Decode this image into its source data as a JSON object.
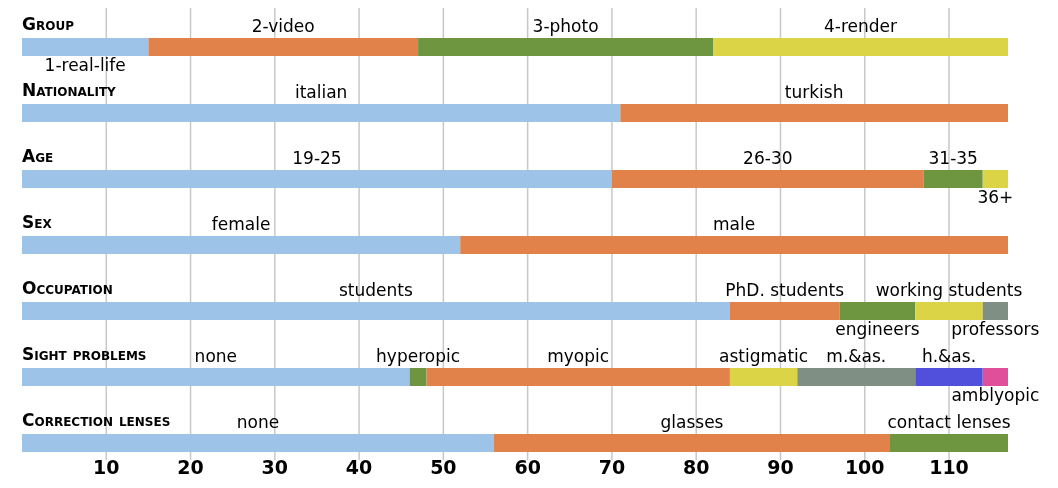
{
  "chart_data": {
    "type": "bar",
    "orientation": "horizontal",
    "stacked": true,
    "categories": [
      "Group",
      "Nationality",
      "Age",
      "Sex",
      "Occupation",
      "Sight problems",
      "Correction lenses"
    ],
    "xlim": [
      0,
      117
    ],
    "xticks": [
      10,
      20,
      30,
      40,
      50,
      60,
      70,
      80,
      90,
      100,
      110
    ],
    "grid": "x",
    "series": [
      {
        "name": "1-real-life",
        "color": "#9dc3e8",
        "values": [
          15,
          null,
          null,
          null,
          null,
          null,
          null
        ]
      },
      {
        "name": "2-video",
        "color": "#e0824a",
        "values": [
          32,
          null,
          null,
          null,
          null,
          null,
          null
        ]
      },
      {
        "name": "3-photo",
        "color": "#6e9640",
        "values": [
          35,
          null,
          null,
          null,
          null,
          null,
          null
        ]
      },
      {
        "name": "4-render",
        "color": "#dcd447",
        "values": [
          35,
          null,
          null,
          null,
          null,
          null,
          null
        ]
      },
      {
        "name": "italian",
        "color": "#9dc3e8",
        "values": [
          null,
          71,
          null,
          null,
          null,
          null,
          null
        ]
      },
      {
        "name": "turkish",
        "color": "#e0824a",
        "values": [
          null,
          46,
          null,
          null,
          null,
          null,
          null
        ]
      },
      {
        "name": "19-25",
        "color": "#9dc3e8",
        "values": [
          null,
          null,
          70,
          null,
          null,
          null,
          null
        ]
      },
      {
        "name": "26-30",
        "color": "#e0824a",
        "values": [
          null,
          null,
          37,
          null,
          null,
          null,
          null
        ]
      },
      {
        "name": "31-35",
        "color": "#6e9640",
        "values": [
          null,
          null,
          7,
          null,
          null,
          null,
          null
        ]
      },
      {
        "name": "36+",
        "color": "#dcd447",
        "values": [
          null,
          null,
          3,
          null,
          null,
          null,
          null
        ]
      },
      {
        "name": "female",
        "color": "#9dc3e8",
        "values": [
          null,
          null,
          null,
          52,
          null,
          null,
          null
        ]
      },
      {
        "name": "male",
        "color": "#e0824a",
        "values": [
          null,
          null,
          null,
          65,
          null,
          null,
          null
        ]
      },
      {
        "name": "students",
        "color": "#9dc3e8",
        "values": [
          null,
          null,
          null,
          null,
          84,
          null,
          null
        ]
      },
      {
        "name": "PhD. students",
        "color": "#e0824a",
        "values": [
          null,
          null,
          null,
          null,
          13,
          null,
          null
        ]
      },
      {
        "name": "engineers",
        "color": "#6e9640",
        "values": [
          null,
          null,
          null,
          null,
          9,
          null,
          null
        ]
      },
      {
        "name": "working students",
        "color": "#dcd447",
        "values": [
          null,
          null,
          null,
          null,
          8,
          null,
          null
        ]
      },
      {
        "name": "professors",
        "color": "#7f8f84",
        "values": [
          null,
          null,
          null,
          null,
          3,
          null,
          null
        ]
      },
      {
        "name": "none",
        "color": "#9dc3e8",
        "values": [
          null,
          null,
          null,
          null,
          null,
          46,
          null
        ]
      },
      {
        "name": "hyperopic",
        "color": "#6e9640",
        "values": [
          null,
          null,
          null,
          null,
          null,
          2,
          null
        ]
      },
      {
        "name": "myopic",
        "color": "#e0824a",
        "values": [
          null,
          null,
          null,
          null,
          null,
          36,
          null
        ]
      },
      {
        "name": "astigmatic",
        "color": "#dcd447",
        "values": [
          null,
          null,
          null,
          null,
          null,
          8,
          null
        ]
      },
      {
        "name": "m.&as.",
        "color": "#7f8f84",
        "values": [
          null,
          null,
          null,
          null,
          null,
          14,
          null
        ]
      },
      {
        "name": "h.&as.",
        "color": "#5050dc",
        "values": [
          null,
          null,
          null,
          null,
          null,
          8,
          null
        ]
      },
      {
        "name": "amblyopic",
        "color": "#e0509a",
        "values": [
          null,
          null,
          null,
          null,
          null,
          3,
          null
        ]
      },
      {
        "name": "none",
        "color": "#9dc3e8",
        "values": [
          null,
          null,
          null,
          null,
          null,
          null,
          56
        ]
      },
      {
        "name": "glasses",
        "color": "#e0824a",
        "values": [
          null,
          null,
          null,
          null,
          null,
          null,
          47
        ]
      },
      {
        "name": "contact lenses",
        "color": "#6e9640",
        "values": [
          null,
          null,
          null,
          null,
          null,
          null,
          14
        ]
      }
    ]
  }
}
